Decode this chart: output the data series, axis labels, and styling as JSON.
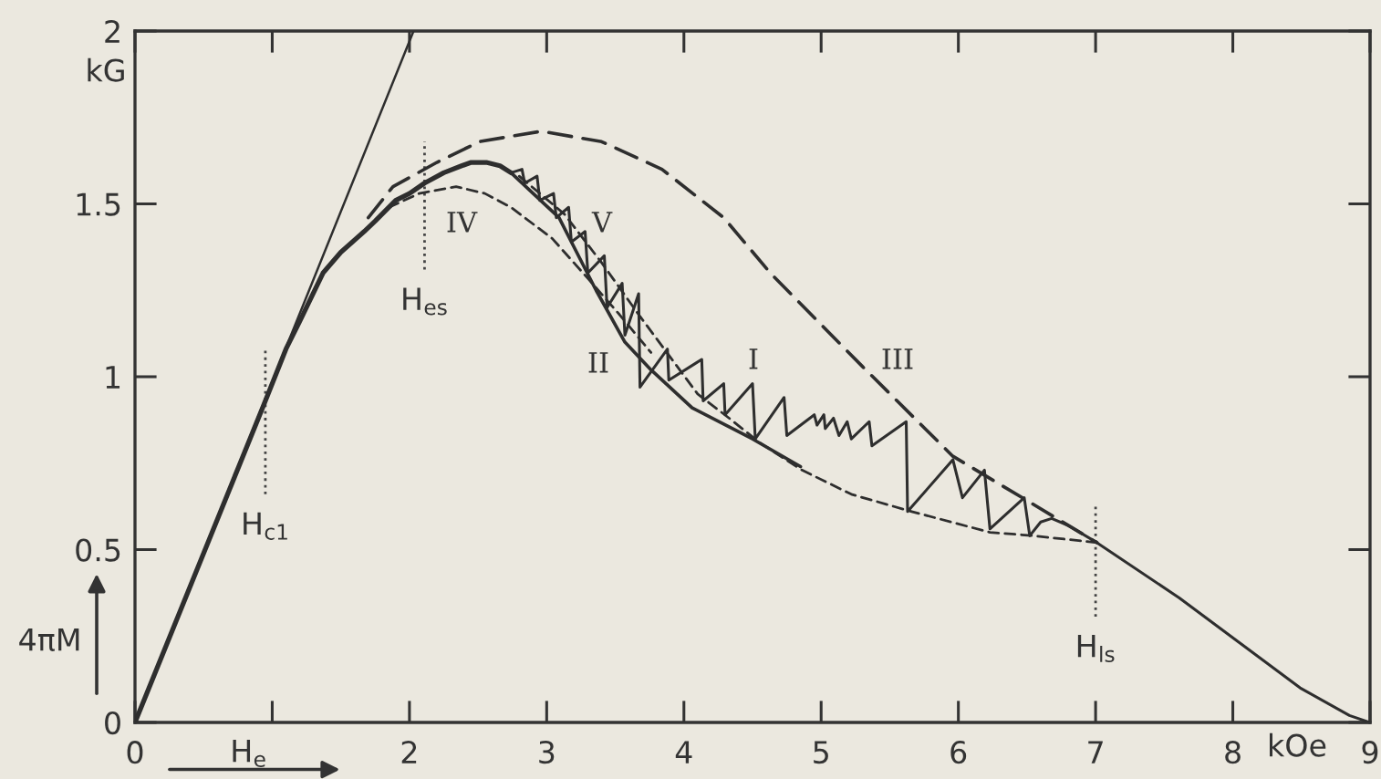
{
  "chart_data": {
    "type": "line",
    "xlabel": "H$_{e}$",
    "ylabel": "4πM",
    "series": [
      {
        "color": "#2e2e2e",
        "line_style": "solid",
        "x": [
          0,
          2.03
        ],
        "values": [
          0,
          2
        ]
      },
      {
        "color": "#2e2e2e",
        "line_style": "solid",
        "x": [
          0,
          0.94,
          1.1,
          1.2,
          1.37,
          1.5,
          1.67,
          1.75,
          1.9,
          2.0,
          2.11,
          2.25,
          2.38,
          2.45,
          2.56,
          2.66,
          2.74
        ],
        "values": [
          0,
          0.92,
          1.08,
          1.16,
          1.3,
          1.36,
          1.42,
          1.45,
          1.51,
          1.53,
          1.56,
          1.59,
          1.61,
          1.62,
          1.62,
          1.61,
          1.59
        ]
      },
      {
        "color": "#2e2e2e",
        "line_style": "solid",
        "x": [
          2.74,
          3.09,
          3.36,
          3.57,
          3.76,
          4.06,
          4.5,
          4.85
        ],
        "values": [
          1.59,
          1.46,
          1.25,
          1.1,
          1.02,
          0.91,
          0.82,
          0.74
        ]
      },
      {
        "color": "#2e2e2e",
        "line_style": "dashed",
        "x": [
          1.85,
          2.07,
          2.34,
          2.55,
          2.74,
          3.04,
          3.31,
          3.53,
          3.76
        ],
        "values": [
          1.49,
          1.53,
          1.55,
          1.53,
          1.49,
          1.4,
          1.28,
          1.18,
          1.07
        ]
      },
      {
        "color": "#2e2e2e",
        "line_style": "dashed",
        "x": [
          2.8,
          3.13,
          3.4,
          3.67,
          4.1,
          4.33,
          4.55,
          4.86,
          5.22,
          5.66,
          6.23,
          6.55,
          7.01
        ],
        "values": [
          1.58,
          1.47,
          1.33,
          1.18,
          0.95,
          0.88,
          0.81,
          0.73,
          0.66,
          0.61,
          0.55,
          0.54,
          0.52
        ]
      },
      {
        "color": "#2e2e2e",
        "line_style": "dashed",
        "x": [
          1.7,
          1.88,
          2.2,
          2.51,
          2.96,
          3.4,
          3.84,
          4.29,
          4.63,
          5.3,
          5.96,
          6.55,
          7.01
        ],
        "values": [
          1.46,
          1.55,
          1.62,
          1.68,
          1.71,
          1.68,
          1.6,
          1.46,
          1.3,
          1.03,
          0.77,
          0.63,
          0.52
        ]
      },
      {
        "color": "#2e2e2e",
        "line_style": "solid",
        "x": [
          2.74,
          2.82,
          2.84,
          2.93,
          2.95,
          3.05,
          3.07,
          3.16,
          3.18,
          3.28,
          3.3,
          3.42,
          3.44,
          3.55,
          3.57,
          3.67,
          3.68,
          3.88,
          3.89,
          4.13,
          4.14,
          4.29,
          4.3,
          4.5,
          4.52,
          4.73,
          4.75,
          4.95,
          4.97,
          5.02,
          5.03,
          5.09,
          5.13,
          5.19,
          5.22,
          5.35,
          5.37,
          5.62,
          5.63,
          5.96,
          6.03,
          6.19,
          6.23,
          6.48,
          6.52,
          6.6,
          6.68,
          6.8,
          7.01,
          7.61,
          8.05,
          8.49,
          8.85,
          9.0
        ],
        "values": [
          1.59,
          1.6,
          1.56,
          1.58,
          1.51,
          1.53,
          1.46,
          1.49,
          1.39,
          1.42,
          1.3,
          1.35,
          1.2,
          1.27,
          1.12,
          1.24,
          0.97,
          1.08,
          0.99,
          1.05,
          0.93,
          0.98,
          0.89,
          0.98,
          0.82,
          0.94,
          0.83,
          0.89,
          0.86,
          0.89,
          0.85,
          0.88,
          0.83,
          0.87,
          0.82,
          0.87,
          0.8,
          0.87,
          0.61,
          0.76,
          0.65,
          0.73,
          0.56,
          0.65,
          0.54,
          0.58,
          0.59,
          0.57,
          0.52,
          0.36,
          0.23,
          0.1,
          0.02,
          0
        ]
      }
    ],
    "xlim": [
      0,
      9
    ],
    "ylim": [
      0,
      2
    ],
    "xticks": [
      0,
      {
        "value": 1,
        "label": null
      },
      2,
      3,
      4,
      5,
      6,
      7,
      8,
      9
    ],
    "yticks": [
      0,
      0.5,
      1,
      1.5,
      2
    ],
    "ref_lines": [
      {
        "axis": "x",
        "value": 0.95,
        "label": "H$_{c1}$",
        "line_style": "dotted",
        "color": "#444444"
      },
      {
        "axis": "x",
        "value": 2.11,
        "label": "H$_{es}$",
        "line_style": "dotted",
        "color": "#444444"
      },
      {
        "axis": "x",
        "value": 7,
        "label": "H$_{ls}$",
        "line_style": "dotted",
        "color": "#444444"
      }
    ],
    "annotations": [
      "IV",
      "V",
      "II",
      "I",
      "III",
      "kG",
      "kOe"
    ],
    "grid": false,
    "legend": false
  }
}
